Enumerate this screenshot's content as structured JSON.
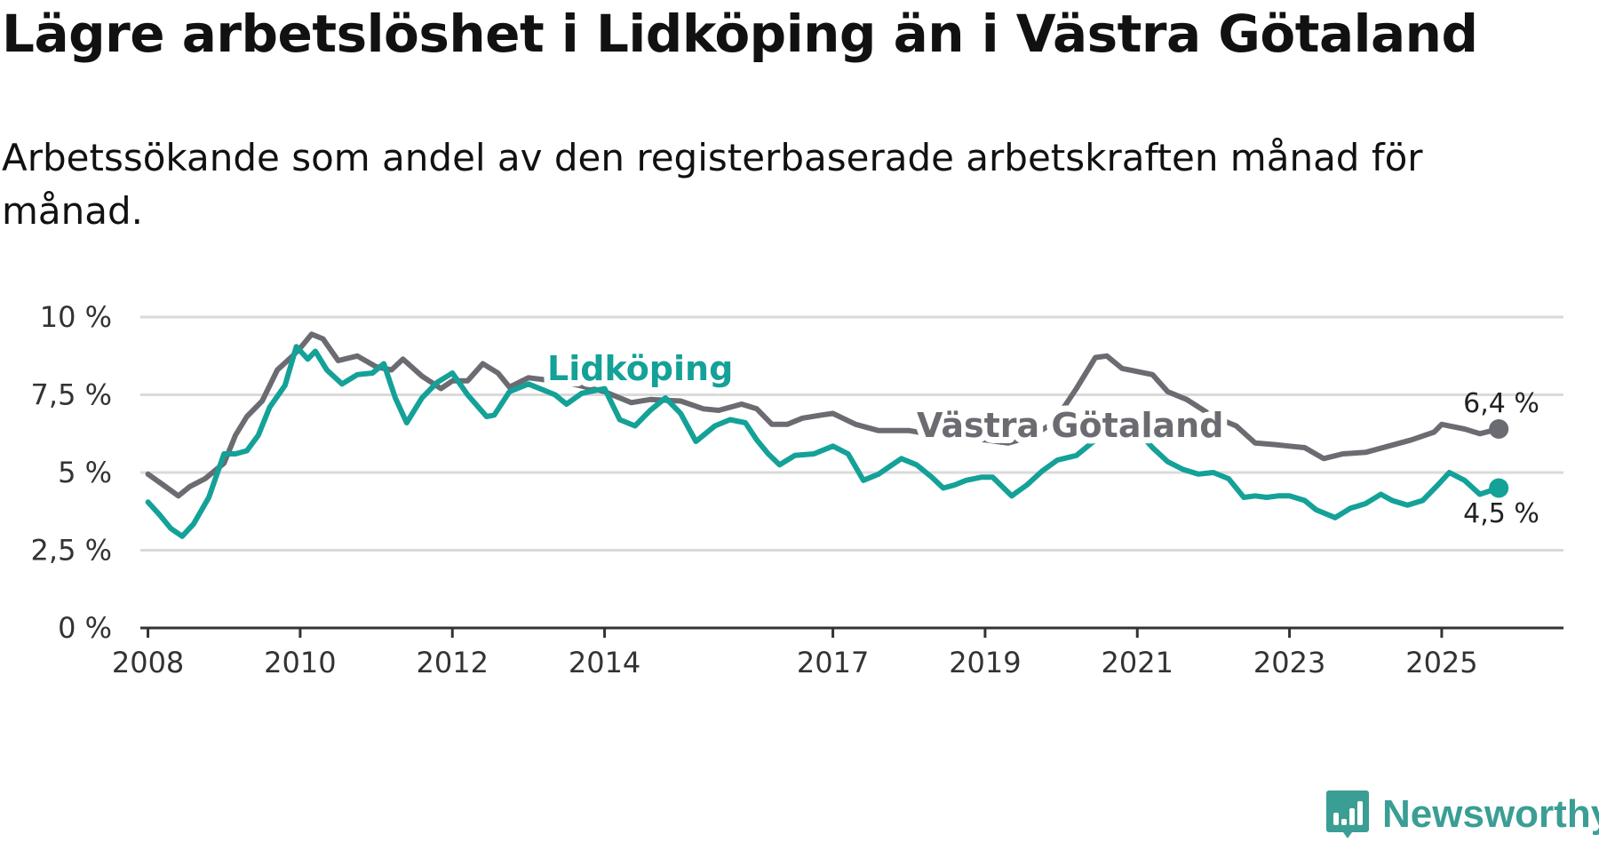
{
  "header": {
    "title": "Lägre arbetslöshet i Lidköping än i Västra Götaland",
    "subtitle": "Arbetssökande som andel av den registerbaserade arbetskraften månad för månad."
  },
  "branding": {
    "name": "Newsworthy",
    "icon": "chart-bubble-icon",
    "color": "#3a9e94"
  },
  "chart_data": {
    "type": "line",
    "title": "Lägre arbetslöshet i Lidköping än i Västra Götaland",
    "subtitle": "Arbetssökande som andel av den registerbaserade arbetskraften månad för månad.",
    "xlabel": "",
    "ylabel": "",
    "xlim": [
      2007.9,
      2026.6
    ],
    "ylim": [
      0,
      10
    ],
    "grid": true,
    "yticks": [
      0,
      2.5,
      5,
      7.5,
      10
    ],
    "ytick_labels": [
      "0 %",
      "2,5 %",
      "5 %",
      "7,5 %",
      "10 %"
    ],
    "xticks": [
      2008,
      2010,
      2012,
      2014,
      2017,
      2019,
      2021,
      2023,
      2025
    ],
    "xtick_labels": [
      "2008",
      "2010",
      "2012",
      "2014",
      "2017",
      "2019",
      "2021",
      "2023",
      "2025"
    ],
    "series": [
      {
        "name": "Västra Götaland",
        "label": "Västra Götaland",
        "color": "#6b6b72",
        "end_label": "6,4 %",
        "x": [
          2008,
          2008.2,
          2008.4,
          2008.55,
          2008.75,
          2009,
          2009.15,
          2009.3,
          2009.5,
          2009.7,
          2009.9,
          2010,
          2010.15,
          2010.3,
          2010.5,
          2010.75,
          2011,
          2011.2,
          2011.35,
          2011.6,
          2011.85,
          2012,
          2012.2,
          2012.4,
          2012.6,
          2012.75,
          2013,
          2013.5,
          2014,
          2014.35,
          2014.6,
          2015,
          2015.3,
          2015.5,
          2015.8,
          2016,
          2016.2,
          2016.4,
          2016.6,
          2016.85,
          2017,
          2017.3,
          2017.6,
          2018,
          2018.5,
          2019,
          2019.3,
          2019.6,
          2019.9,
          2020.2,
          2020.45,
          2020.6,
          2020.8,
          2021,
          2021.2,
          2021.4,
          2021.65,
          2022,
          2022.3,
          2022.55,
          2022.8,
          2023,
          2023.2,
          2023.45,
          2023.7,
          2024,
          2024.3,
          2024.6,
          2024.9,
          2025,
          2025.3,
          2025.5,
          2025.75
        ],
        "values": [
          4.95,
          4.6,
          4.25,
          4.55,
          4.8,
          5.3,
          6.2,
          6.8,
          7.3,
          8.3,
          8.75,
          9.0,
          9.45,
          9.3,
          8.6,
          8.75,
          8.4,
          8.3,
          8.65,
          8.1,
          7.7,
          7.95,
          7.95,
          8.5,
          8.2,
          7.75,
          8.05,
          7.9,
          7.6,
          7.25,
          7.35,
          7.3,
          7.05,
          7.0,
          7.2,
          7.05,
          6.55,
          6.55,
          6.75,
          6.85,
          6.9,
          6.55,
          6.35,
          6.35,
          6.15,
          6.05,
          5.95,
          6.15,
          6.6,
          7.7,
          8.7,
          8.75,
          8.35,
          8.25,
          8.15,
          7.6,
          7.35,
          6.8,
          6.5,
          5.95,
          5.9,
          5.85,
          5.8,
          5.45,
          5.6,
          5.65,
          5.85,
          6.05,
          6.3,
          6.55,
          6.4,
          6.25,
          6.4
        ]
      },
      {
        "name": "Lidköping",
        "label": "Lidköping",
        "color": "#14a198",
        "end_label": "4,5 %",
        "x": [
          2008,
          2008.15,
          2008.3,
          2008.45,
          2008.6,
          2008.8,
          2009,
          2009.15,
          2009.3,
          2009.45,
          2009.6,
          2009.8,
          2009.95,
          2010.1,
          2010.2,
          2010.35,
          2010.55,
          2010.75,
          2010.95,
          2011.1,
          2011.25,
          2011.4,
          2011.6,
          2011.8,
          2012,
          2012.2,
          2012.45,
          2012.55,
          2012.75,
          2013,
          2013.35,
          2013.5,
          2013.7,
          2014,
          2014.2,
          2014.4,
          2014.6,
          2014.8,
          2015,
          2015.2,
          2015.45,
          2015.65,
          2015.85,
          2016,
          2016.15,
          2016.3,
          2016.5,
          2016.75,
          2017,
          2017.2,
          2017.4,
          2017.6,
          2017.75,
          2017.9,
          2018.1,
          2018.3,
          2018.45,
          2018.6,
          2018.75,
          2018.95,
          2019.1,
          2019.35,
          2019.55,
          2019.75,
          2019.95,
          2020.2,
          2020.45,
          2020.6,
          2020.8,
          2021,
          2021.2,
          2021.4,
          2021.6,
          2021.8,
          2022,
          2022.2,
          2022.4,
          2022.55,
          2022.7,
          2022.85,
          2023,
          2023.2,
          2023.35,
          2023.6,
          2023.8,
          2024,
          2024.2,
          2024.35,
          2024.55,
          2024.75,
          2024.95,
          2025.1,
          2025.3,
          2025.5,
          2025.75
        ],
        "values": [
          4.05,
          3.65,
          3.2,
          2.95,
          3.35,
          4.2,
          5.6,
          5.6,
          5.7,
          6.2,
          7.1,
          7.8,
          9.05,
          8.65,
          8.9,
          8.3,
          7.85,
          8.15,
          8.2,
          8.5,
          7.4,
          6.6,
          7.4,
          7.9,
          8.2,
          7.5,
          6.8,
          6.85,
          7.6,
          7.85,
          7.5,
          7.2,
          7.55,
          7.7,
          6.7,
          6.5,
          7.0,
          7.4,
          6.9,
          6.0,
          6.5,
          6.7,
          6.6,
          6.05,
          5.6,
          5.25,
          5.55,
          5.6,
          5.85,
          5.6,
          4.75,
          4.95,
          5.2,
          5.45,
          5.25,
          4.85,
          4.5,
          4.6,
          4.75,
          4.85,
          4.85,
          4.25,
          4.6,
          5.05,
          5.4,
          5.55,
          6.05,
          6.3,
          6.5,
          6.35,
          5.8,
          5.35,
          5.1,
          4.95,
          5.0,
          4.8,
          4.2,
          4.25,
          4.2,
          4.25,
          4.25,
          4.1,
          3.8,
          3.55,
          3.85,
          4.0,
          4.3,
          4.1,
          3.95,
          4.1,
          4.6,
          5.0,
          4.75,
          4.3,
          4.5
        ]
      }
    ]
  }
}
